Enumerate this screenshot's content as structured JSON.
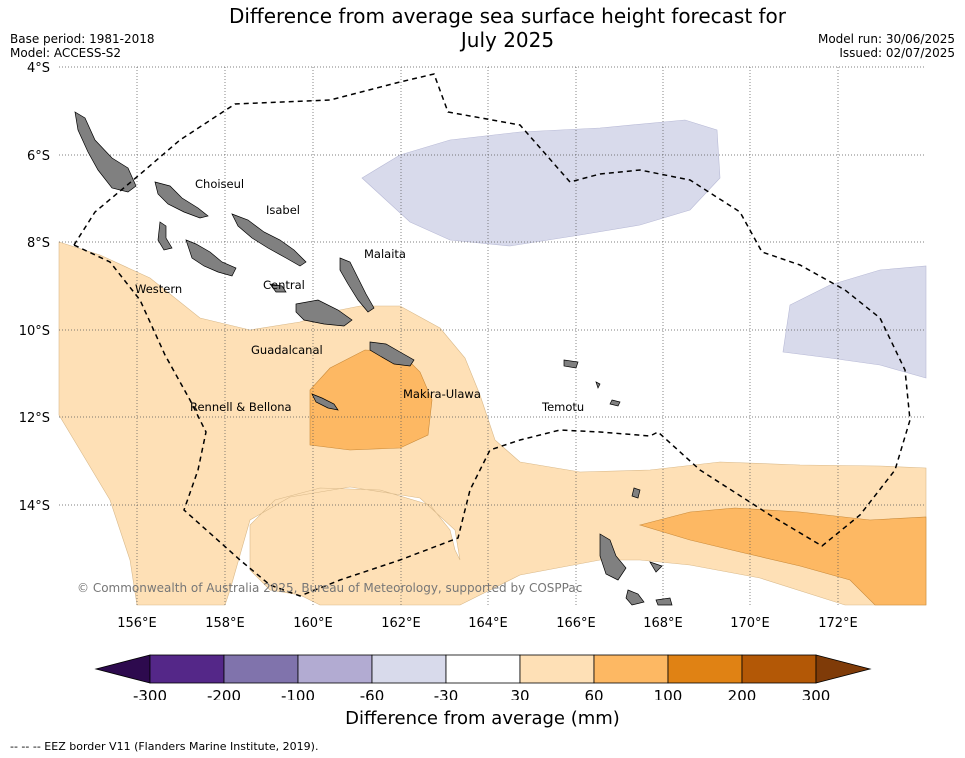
{
  "title_line1": "Difference from average sea surface height forecast for",
  "title_line2": "July 2025",
  "meta": {
    "base_period": "Base period: 1981-2018",
    "model": "Model: ACCESS-S2",
    "model_run": "Model run: 30/06/2025",
    "issued": "Issued: 02/07/2025"
  },
  "axes": {
    "lat_labels": [
      "4°S",
      "6°S",
      "8°S",
      "10°S",
      "12°S",
      "14°S"
    ],
    "lon_labels": [
      "156°E",
      "158°E",
      "160°E",
      "162°E",
      "164°E",
      "166°E",
      "168°E",
      "170°E",
      "172°E"
    ]
  },
  "regions": [
    "Choiseul",
    "Isabel",
    "Malaita",
    "Western",
    "Central",
    "Guadalcanal",
    "Makira-Ulawa",
    "Rennell & Bellona",
    "Temotu"
  ],
  "copyright": "© Commonwealth of Australia 2025, Bureau of Meteorology, supported by COSPPac",
  "colorbar": {
    "title": "Difference from average (mm)",
    "labels": [
      "-300",
      "-200",
      "-100",
      "-60",
      "-30",
      "30",
      "60",
      "100",
      "200",
      "300"
    ],
    "colors": [
      "#2d0a4e",
      "#542788",
      "#8073ac",
      "#b2abd2",
      "#d8daeb",
      "#ffffff",
      "#fee0b6",
      "#fdb863",
      "#e08214",
      "#b35806",
      "#7f3b08"
    ]
  },
  "footnote": "-- -- -- EEZ border V11 (Flanders Marine Institute, 2019)."
}
